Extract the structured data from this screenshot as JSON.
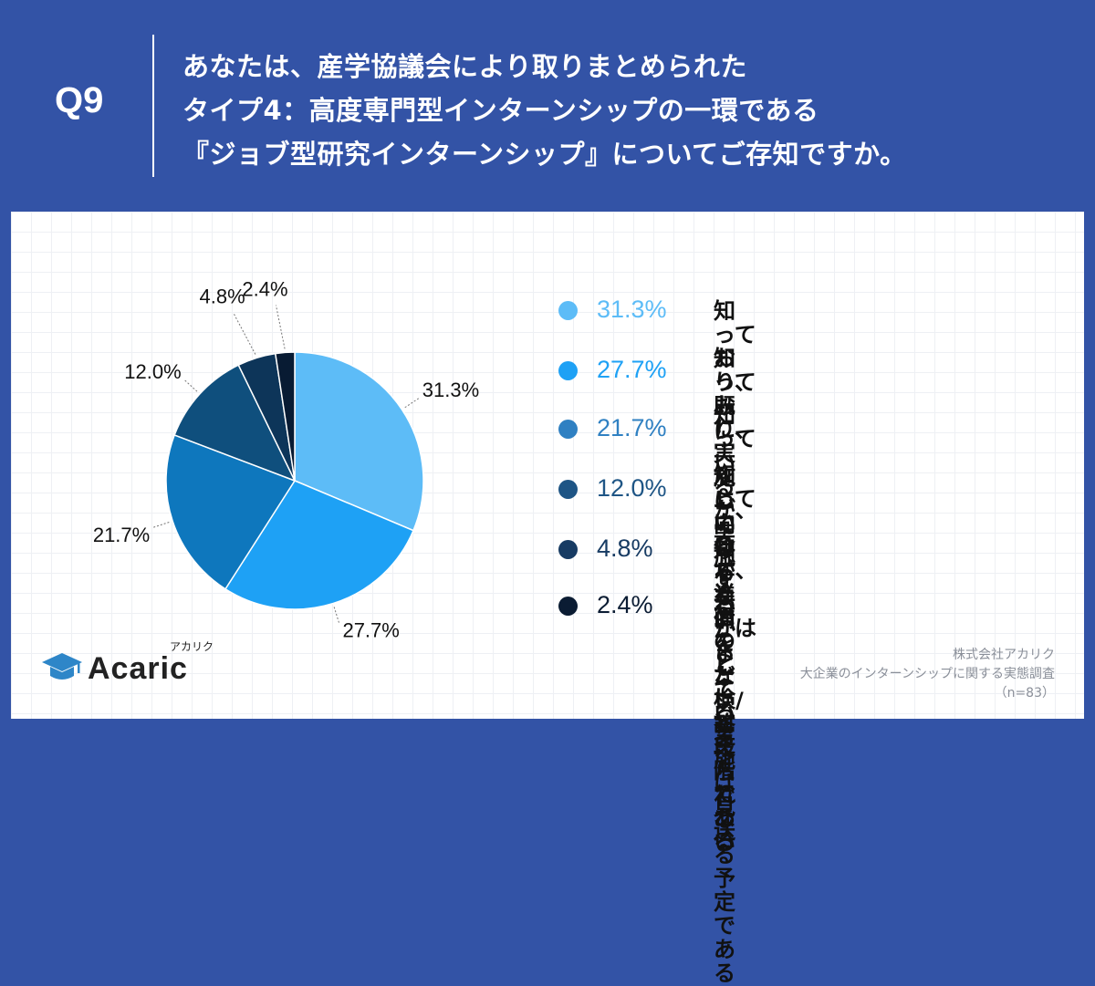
{
  "header": {
    "qnum": "Q9",
    "lines": [
      "あなたは、産学協議会により取りまとめられた",
      "タイプ4：高度専門型インターンシップの一環である",
      "『ジョブ型研究インターンシップ』についてご存知ですか。"
    ]
  },
  "chart_data": {
    "type": "pie",
    "slices": [
      {
        "label": "知っており、既に実施している",
        "value": 31.3,
        "value_label": "31.3%",
        "color": "#5dbcf7"
      },
      {
        "label": "知っており、\n実施に向けて準備をしている",
        "value": 27.7,
        "value_label": "27.7%",
        "color": "#1ea1f5"
      },
      {
        "label": "知っているが、実施するかは\nまだ検討段階である",
        "value": 21.7,
        "value_label": "21.7%",
        "color": "#0e77bd"
      },
      {
        "label": "知っているが、当面のところ\n実施は見送る予定である",
        "value": 12.0,
        "value_label": "12.0%",
        "color": "#0f4f7d"
      },
      {
        "label": "知らない",
        "value": 4.8,
        "value_label": "4.8%",
        "color": "#0d3559"
      },
      {
        "label": "わからない/答えられない",
        "value": 2.4,
        "value_label": "2.4%",
        "color": "#081b33"
      }
    ],
    "legend_position": "right"
  },
  "legend_colors": [
    "#5dbcf7",
    "#1ea1f5",
    "#2f80c2",
    "#1e5585",
    "#173b63",
    "#0b1c33"
  ],
  "logo": {
    "text": "Acaric",
    "kana": "アカリク"
  },
  "source": {
    "company": "株式会社アカリク",
    "survey": "大企業のインターンシップに関する実態調査",
    "n": "（n=83）"
  }
}
